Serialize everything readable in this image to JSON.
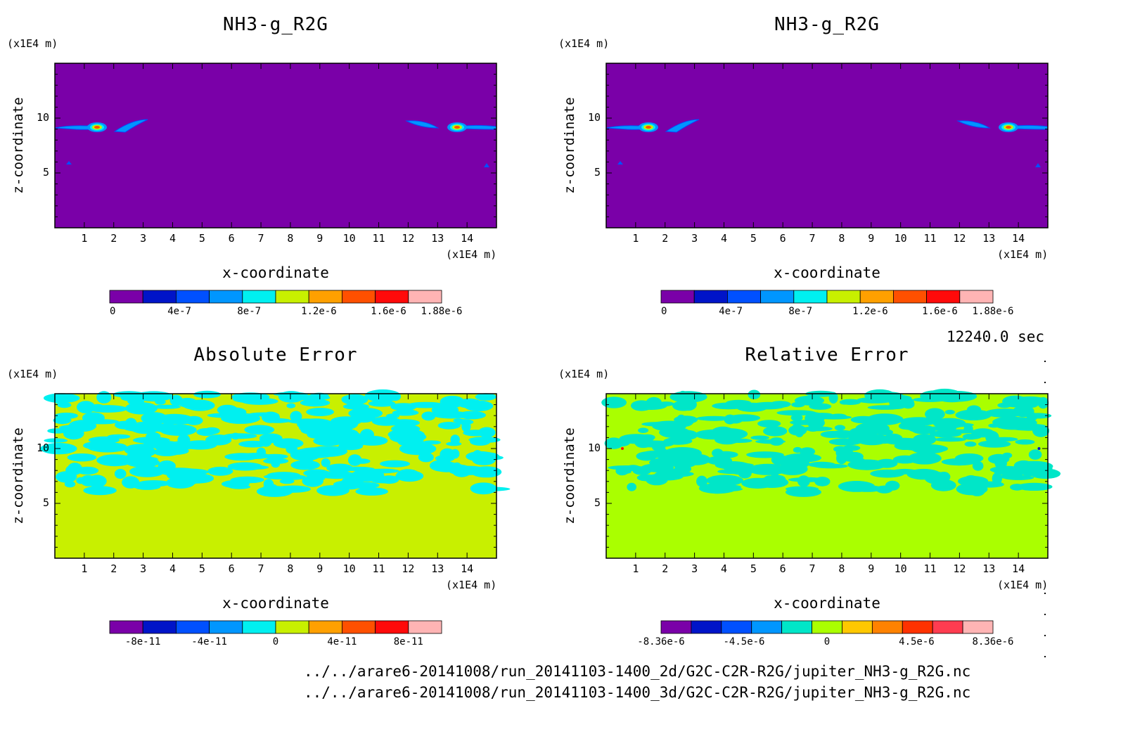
{
  "time_label": "12240.0 sec",
  "files": [
    "../../arare6-20141008/run_20141103-1400_2d/G2C-C2R-R2G/jupiter_NH3-g_R2G.nc",
    "../../arare6-20141008/run_20141103-1400_3d/G2C-C2R-R2G/jupiter_NH3-g_R2G.nc"
  ],
  "chart_data": [
    {
      "type": "heatmap",
      "title": "NH3-g_R2G",
      "xlabel": "x-coordinate",
      "ylabel": "z-coordinate",
      "x_unit": "(x1E4 m)",
      "y_unit": "(x1E4 m)",
      "x_ticks": [
        "1",
        "2",
        "3",
        "4",
        "5",
        "6",
        "7",
        "8",
        "9",
        "10",
        "11",
        "12",
        "13",
        "14"
      ],
      "y_ticks": [
        "5",
        "10"
      ],
      "xlim": [
        0,
        15
      ],
      "ylim": [
        0,
        15
      ],
      "colorbar": {
        "colors": [
          "#7a00a8",
          "#0014c8",
          "#0050ff",
          "#0096ff",
          "#00f0f0",
          "#c8f000",
          "#ffa000",
          "#ff5000",
          "#ff0a0a",
          "#ffb4b4"
        ],
        "labels": [
          "0",
          "4e-7",
          "8e-7",
          "1.2e-6",
          "1.6e-6",
          "1.88e-6"
        ]
      }
    },
    {
      "type": "heatmap",
      "title": "NH3-g_R2G",
      "xlabel": "x-coordinate",
      "ylabel": "z-coordinate",
      "x_unit": "(x1E4 m)",
      "y_unit": "(x1E4 m)",
      "x_ticks": [
        "1",
        "2",
        "3",
        "4",
        "5",
        "6",
        "7",
        "8",
        "9",
        "10",
        "11",
        "12",
        "13",
        "14"
      ],
      "y_ticks": [
        "5",
        "10"
      ],
      "xlim": [
        0,
        15
      ],
      "ylim": [
        0,
        15
      ],
      "colorbar": {
        "colors": [
          "#7a00a8",
          "#0014c8",
          "#0050ff",
          "#0096ff",
          "#00f0f0",
          "#c8f000",
          "#ffa000",
          "#ff5000",
          "#ff0a0a",
          "#ffb4b4"
        ],
        "labels": [
          "0",
          "4e-7",
          "8e-7",
          "1.2e-6",
          "1.6e-6",
          "1.88e-6"
        ]
      }
    },
    {
      "type": "heatmap",
      "title": "Absolute Error",
      "xlabel": "x-coordinate",
      "ylabel": "z-coordinate",
      "x_unit": "(x1E4 m)",
      "y_unit": "(x1E4 m)",
      "x_ticks": [
        "1",
        "2",
        "3",
        "4",
        "5",
        "6",
        "7",
        "8",
        "9",
        "10",
        "11",
        "12",
        "13",
        "14"
      ],
      "y_ticks": [
        "5",
        "10"
      ],
      "xlim": [
        0,
        15
      ],
      "ylim": [
        0,
        15
      ],
      "colorbar": {
        "colors": [
          "#7a00a8",
          "#0014c8",
          "#0050ff",
          "#0096ff",
          "#00f0f0",
          "#c8f000",
          "#ffa000",
          "#ff5000",
          "#ff0a0a",
          "#ffb4b4"
        ],
        "labels": [
          "-8e-11",
          "-4e-11",
          "0",
          "4e-11",
          "8e-11"
        ]
      }
    },
    {
      "type": "heatmap",
      "title": "Relative Error",
      "xlabel": "x-coordinate",
      "ylabel": "z-coordinate",
      "x_unit": "(x1E4 m)",
      "y_unit": "(x1E4 m)",
      "x_ticks": [
        "1",
        "2",
        "3",
        "4",
        "5",
        "6",
        "7",
        "8",
        "9",
        "10",
        "11",
        "12",
        "13",
        "14"
      ],
      "y_ticks": [
        "5",
        "10"
      ],
      "xlim": [
        0,
        15
      ],
      "ylim": [
        0,
        15
      ],
      "colorbar": {
        "colors": [
          "#7a00a8",
          "#0014c8",
          "#0050ff",
          "#0096ff",
          "#00e6c8",
          "#aaff00",
          "#ffc800",
          "#ff8200",
          "#ff3200",
          "#ff3c50",
          "#ffb4b4"
        ],
        "labels": [
          "-8.36e-6",
          "-4.5e-6",
          "0",
          "4.5e-6",
          "8.36e-6"
        ]
      }
    }
  ]
}
